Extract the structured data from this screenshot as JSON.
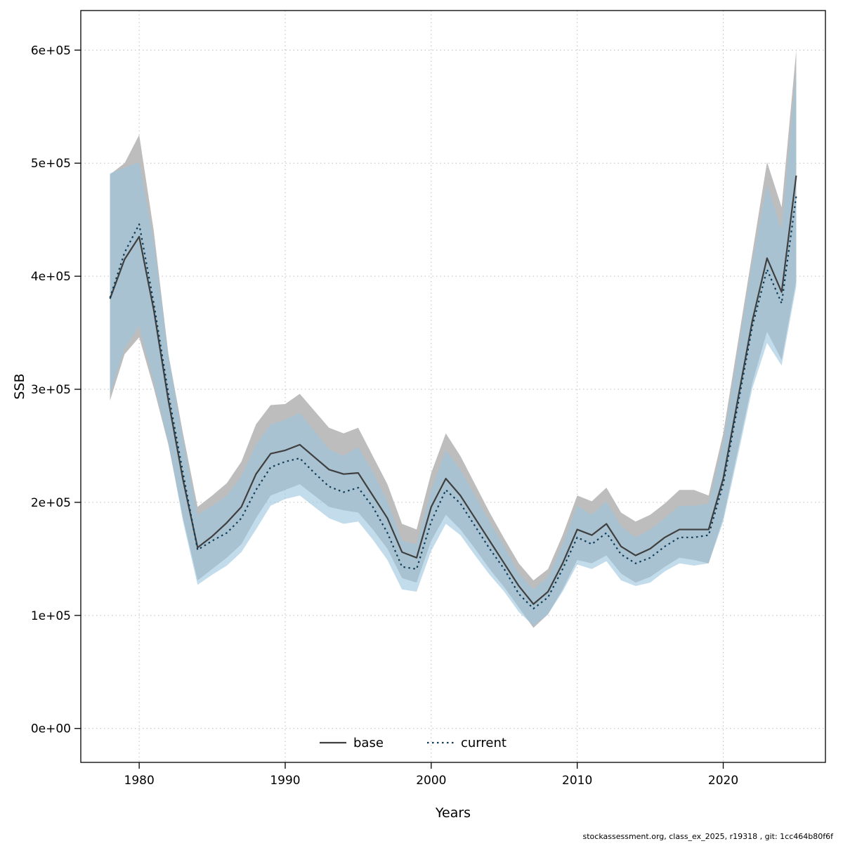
{
  "page": {
    "background": "#ffffff"
  },
  "footer_note": "stockassessment.org, class_ex_2025, r19318 , git: 1cc464b80f6f",
  "chart_data": {
    "type": "line",
    "title": "",
    "xlabel": "Years",
    "ylabel": "SSB",
    "xlim": [
      1976,
      2027
    ],
    "ylim": [
      -30000,
      635000
    ],
    "grid": true,
    "legend_position": "bottom-center",
    "xticks": [
      1980,
      1990,
      2000,
      2010,
      2020
    ],
    "yticks": [
      {
        "value": 0,
        "label": "0e+00"
      },
      {
        "value": 100000,
        "label": "1e+05"
      },
      {
        "value": 200000,
        "label": "2e+05"
      },
      {
        "value": 300000,
        "label": "3e+05"
      },
      {
        "value": 400000,
        "label": "4e+05"
      },
      {
        "value": 500000,
        "label": "5e+05"
      },
      {
        "value": 600000,
        "label": "6e+05"
      }
    ],
    "years": [
      1978,
      1979,
      1980,
      1981,
      1982,
      1983,
      1984,
      1985,
      1986,
      1987,
      1988,
      1989,
      1990,
      1991,
      1992,
      1993,
      1994,
      1995,
      1996,
      1997,
      1998,
      1999,
      2000,
      2001,
      2002,
      2003,
      2004,
      2005,
      2006,
      2007,
      2008,
      2009,
      2010,
      2011,
      2012,
      2013,
      2014,
      2015,
      2016,
      2017,
      2018,
      2019,
      2020,
      2021,
      2022,
      2023,
      2024,
      2025
    ],
    "series": [
      {
        "name": "base",
        "style": "solid",
        "color": "#3f3f3f",
        "band_color": "#bdbdbd",
        "band_opacity": 1.0,
        "values": [
          380000,
          415000,
          435000,
          370000,
          290000,
          220000,
          160000,
          170000,
          182000,
          196000,
          225000,
          243000,
          246000,
          251000,
          240000,
          229000,
          225000,
          226000,
          206000,
          186000,
          156000,
          151000,
          196000,
          221000,
          206000,
          186000,
          166000,
          146000,
          126000,
          110000,
          121000,
          146000,
          176000,
          171000,
          181000,
          161000,
          153000,
          159000,
          169000,
          176000,
          176000,
          176000,
          221000,
          291000,
          361000,
          416000,
          386000,
          489000
        ],
        "upper": [
          490000,
          500000,
          525000,
          440000,
          331000,
          261000,
          196000,
          206000,
          217000,
          236000,
          269000,
          286000,
          287000,
          296000,
          281000,
          266000,
          261000,
          266000,
          241000,
          216000,
          181000,
          176000,
          226000,
          261000,
          241000,
          216000,
          191000,
          168000,
          146000,
          131000,
          141000,
          171000,
          206000,
          201000,
          213000,
          191000,
          183000,
          189000,
          199000,
          211000,
          211000,
          206000,
          261000,
          341000,
          421000,
          501000,
          461000,
          600000
        ],
        "lower": [
          290000,
          331000,
          346000,
          301000,
          251000,
          186000,
          131000,
          141000,
          151000,
          163000,
          186000,
          206000,
          211000,
          216000,
          206000,
          196000,
          193000,
          191000,
          176000,
          159000,
          133000,
          129000,
          166000,
          189000,
          176000,
          159000,
          141000,
          125000,
          107000,
          89000,
          101000,
          123000,
          149000,
          146000,
          153000,
          137000,
          129000,
          134000,
          143000,
          151000,
          149000,
          146000,
          186000,
          246000,
          306000,
          351000,
          326000,
          396000
        ]
      },
      {
        "name": "current",
        "style": "dotted",
        "color": "#0f3b56",
        "band_color": "#99c5de",
        "band_opacity": 0.6,
        "values": [
          381000,
          421000,
          446000,
          376000,
          296000,
          226000,
          158000,
          166000,
          173000,
          186000,
          211000,
          231000,
          236000,
          239000,
          226000,
          214000,
          209000,
          213000,
          196000,
          173000,
          143000,
          141000,
          183000,
          211000,
          199000,
          179000,
          159000,
          141000,
          119000,
          106000,
          116000,
          141000,
          169000,
          163000,
          173000,
          154000,
          146000,
          151000,
          161000,
          169000,
          169000,
          171000,
          216000,
          286000,
          356000,
          406000,
          376000,
          471000
        ],
        "upper": [
          491000,
          496000,
          501000,
          431000,
          331000,
          256000,
          189000,
          197000,
          206000,
          223000,
          251000,
          269000,
          273000,
          279000,
          263000,
          247000,
          241000,
          249000,
          227000,
          201000,
          166000,
          163000,
          211000,
          246000,
          229000,
          206000,
          183000,
          161000,
          137000,
          123000,
          134000,
          163000,
          197000,
          189000,
          201000,
          179000,
          169000,
          176000,
          186000,
          197000,
          197000,
          199000,
          253000,
          333000,
          413000,
          481000,
          441000,
          581000
        ],
        "lower": [
          296000,
          336000,
          356000,
          306000,
          253000,
          183000,
          127000,
          136000,
          144000,
          156000,
          176000,
          197000,
          203000,
          206000,
          196000,
          186000,
          181000,
          183000,
          167000,
          149000,
          123000,
          121000,
          157000,
          181000,
          171000,
          153000,
          136000,
          121000,
          103000,
          91000,
          101000,
          121000,
          145000,
          141000,
          148000,
          131000,
          126000,
          129000,
          139000,
          146000,
          144000,
          146000,
          183000,
          241000,
          301000,
          341000,
          321000,
          391000
        ]
      }
    ]
  }
}
